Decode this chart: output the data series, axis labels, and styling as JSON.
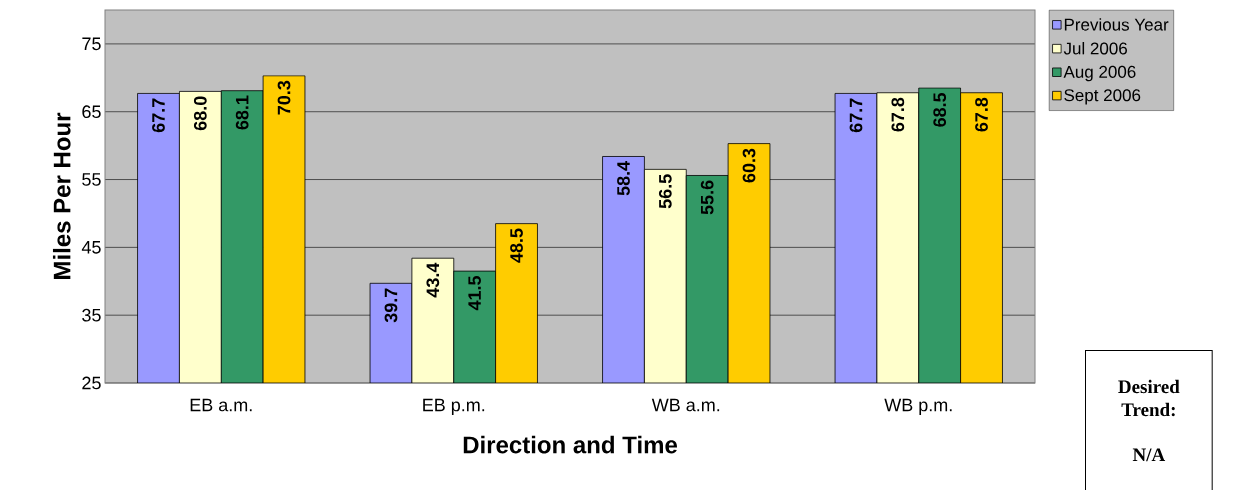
{
  "chart_data": {
    "type": "bar",
    "xlabel": "Direction and Time",
    "ylabel": "Miles Per Hour",
    "categories": [
      "EB a.m.",
      "EB p.m.",
      "WB a.m.",
      "WB p.m."
    ],
    "series": [
      {
        "name": "Previous Year",
        "color": "#9999ff",
        "values": [
          67.7,
          39.7,
          58.4,
          67.7
        ],
        "value_labels": [
          "67.7",
          "39.7",
          "58.4",
          "67.7"
        ]
      },
      {
        "name": "Jul 2006",
        "color": "#ffffcc",
        "values": [
          68.0,
          43.4,
          56.5,
          67.8
        ],
        "value_labels": [
          "68.0",
          "43.4",
          "56.5",
          "67.8"
        ]
      },
      {
        "name": "Aug 2006",
        "color": "#339966",
        "values": [
          68.1,
          41.5,
          55.6,
          68.5
        ],
        "value_labels": [
          "68.1",
          "41.5",
          "55.6",
          "68.5"
        ]
      },
      {
        "name": "Sept 2006",
        "color": "#ffcc00",
        "values": [
          70.3,
          48.5,
          60.3,
          67.8
        ],
        "value_labels": [
          "70.3",
          "48.5",
          "60.3",
          "67.8"
        ]
      }
    ],
    "ylim": [
      25,
      80
    ],
    "yticks": [
      25,
      35,
      45,
      55,
      65,
      75
    ],
    "grid": "y",
    "legend": "top right",
    "annotations": [
      "Desired Trend:",
      "N/A"
    ]
  }
}
